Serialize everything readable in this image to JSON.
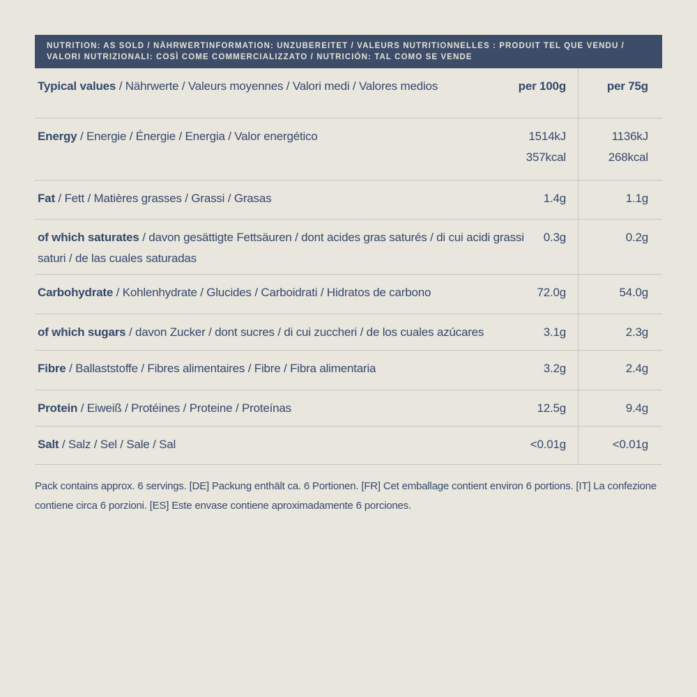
{
  "colors": {
    "background": "#e9e6de",
    "banner_bg": "#3d4c69",
    "banner_text": "#e4e2d8",
    "body_text": "#35496b",
    "divider": "#c7c4bb"
  },
  "banner": {
    "line1": "NUTRITION: AS SOLD / NÄHRWERTINFORMATION: UNZUBEREITET / VALEURS NUTRITIONNELLES : PRODUIT TEL QUE VENDU /",
    "line2": "VALORI NUTRIZIONALI: COSÌ COME COMMERCIALIZZATO / NUTRICIÓN: TAL COMO SE VENDE"
  },
  "table": {
    "header": {
      "primary": "Typical values",
      "rest": " / Nährwerte / Valeurs moyennes / Valori medi / Valores medios",
      "col1": "per 100g",
      "col2": "per 75g"
    },
    "rows": [
      {
        "primary": "Energy",
        "rest": " / Energie / Énergie / Energia / Valor energético",
        "per100": [
          "1514kJ",
          "357kcal"
        ],
        "per75": [
          "1136kJ",
          "268kcal"
        ]
      },
      {
        "primary": "Fat",
        "rest": " / Fett / Matières grasses / Grassi / Grasas",
        "per100": [
          "1.4g"
        ],
        "per75": [
          "1.1g"
        ]
      },
      {
        "primary": "of which saturates",
        "rest": " / davon gesättigte Fettsäuren / dont acides gras saturés / di cui acidi grassi saturi / de las cuales saturadas",
        "per100": [
          "0.3g"
        ],
        "per75": [
          "0.2g"
        ]
      },
      {
        "primary": "Carbohydrate",
        "rest": " / Kohlenhydrate / Glucides / Carboidrati / Hidratos de carbono",
        "per100": [
          "72.0g"
        ],
        "per75": [
          "54.0g"
        ]
      },
      {
        "primary": "of which sugars",
        "rest": " / davon Zucker / dont sucres / di cui zuccheri / de los cuales azúcares",
        "per100": [
          "3.1g"
        ],
        "per75": [
          "2.3g"
        ]
      },
      {
        "primary": "Fibre",
        "rest": " / Ballaststoffe / Fibres alimentaires / Fibre / Fibra alimentaria",
        "per100": [
          "3.2g"
        ],
        "per75": [
          "2.4g"
        ]
      },
      {
        "primary": "Protein",
        "rest": " / Eiweiß / Protéines / Proteine / Proteínas",
        "per100": [
          "12.5g"
        ],
        "per75": [
          "9.4g"
        ]
      },
      {
        "primary": "Salt",
        "rest": " / Salz / Sel / Sale / Sal",
        "per100": [
          "<0.01g"
        ],
        "per75": [
          "<0.01g"
        ]
      }
    ]
  },
  "footer": {
    "text": "Pack contains approx. 6 servings. [DE] Packung enthält ca. 6 Portionen. [FR] Cet emballage contient environ 6 portions. [IT] La confezione contiene circa 6 porzioni. [ES] Este envase contiene aproximadamente 6 porciones."
  }
}
